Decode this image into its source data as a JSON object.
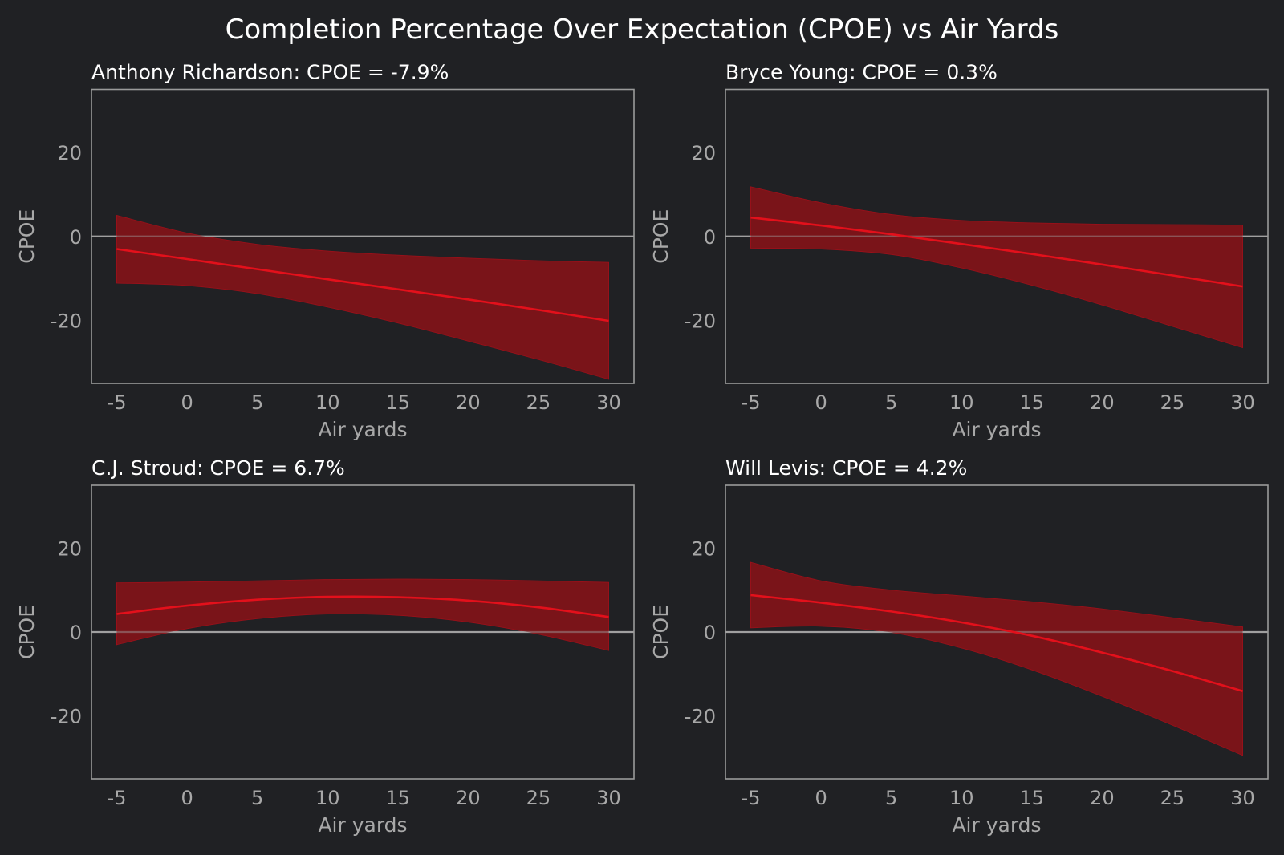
{
  "chart_data": {
    "title": "Completion Percentage Over Expectation (CPOE) vs Air Yards",
    "type": "line",
    "colors": {
      "background": "#202124",
      "band": "#7a1419",
      "line": "#e3101b",
      "zero_line": "#a0a0a0",
      "frame": "#9a9a9a",
      "tick_text": "#a8a8a8",
      "title_text": "#ffffff"
    },
    "panels": [
      {
        "player": "Anthony Richardson",
        "title": "Anthony Richardson: CPOE = -7.9%",
        "xlabel": "Air yards",
        "ylabel": "CPOE",
        "xlim": [
          -6.8,
          31.8
        ],
        "ylim": [
          -35,
          35
        ],
        "xticks": [
          -5,
          0,
          5,
          10,
          15,
          20,
          25,
          30
        ],
        "yticks": [
          -20,
          0,
          20
        ],
        "reference_line": 0,
        "x": [
          -5,
          0,
          5,
          10,
          15,
          20,
          25,
          30
        ],
        "mean": [
          -3.0,
          -5.4,
          -7.8,
          -10.2,
          -12.6,
          -15.0,
          -17.5,
          -20.1
        ],
        "upper": [
          5.0,
          0.8,
          -1.9,
          -3.5,
          -4.5,
          -5.2,
          -5.8,
          -6.2
        ],
        "lower": [
          -11.1,
          -11.7,
          -13.6,
          -16.8,
          -20.6,
          -24.9,
          -29.3,
          -34.0
        ]
      },
      {
        "player": "Bryce Young",
        "title": "Bryce Young: CPOE = 0.3%",
        "xlabel": "Air yards",
        "ylabel": "CPOE",
        "xlim": [
          -6.8,
          31.8
        ],
        "ylim": [
          -35,
          35
        ],
        "xticks": [
          -5,
          0,
          5,
          10,
          15,
          20,
          25,
          30
        ],
        "yticks": [
          -20,
          0,
          20
        ],
        "reference_line": 0,
        "x": [
          -5,
          0,
          5,
          10,
          15,
          20,
          25,
          30
        ],
        "mean": [
          4.5,
          2.6,
          0.5,
          -1.8,
          -4.2,
          -6.7,
          -9.3,
          -11.9
        ],
        "upper": [
          11.8,
          8.0,
          5.2,
          3.8,
          3.2,
          2.9,
          2.8,
          2.7
        ],
        "lower": [
          -2.8,
          -3.0,
          -4.3,
          -7.5,
          -11.6,
          -16.3,
          -21.4,
          -26.5
        ]
      },
      {
        "player": "C.J. Stroud",
        "title": "C.J. Stroud: CPOE = 6.7%",
        "xlabel": "Air yards",
        "ylabel": "CPOE",
        "xlim": [
          -6.8,
          31.8
        ],
        "ylim": [
          -35,
          35
        ],
        "xticks": [
          -5,
          0,
          5,
          10,
          15,
          20,
          25,
          30
        ],
        "yticks": [
          -20,
          0,
          20
        ],
        "reference_line": 0,
        "x": [
          -5,
          0,
          5,
          10,
          15,
          20,
          25,
          30
        ],
        "mean": [
          4.3,
          6.3,
          7.7,
          8.4,
          8.3,
          7.5,
          5.9,
          3.6
        ],
        "upper": [
          11.7,
          11.9,
          12.2,
          12.5,
          12.6,
          12.5,
          12.2,
          11.8
        ],
        "lower": [
          -3.0,
          0.8,
          3.2,
          4.3,
          4.0,
          2.4,
          -0.5,
          -4.4
        ]
      },
      {
        "player": "Will Levis",
        "title": "Will Levis: CPOE = 4.2%",
        "xlabel": "Air yards",
        "ylabel": "CPOE",
        "xlim": [
          -6.8,
          31.8
        ],
        "ylim": [
          -35,
          35
        ],
        "xticks": [
          -5,
          0,
          5,
          10,
          15,
          20,
          25,
          30
        ],
        "yticks": [
          -20,
          0,
          20
        ],
        "reference_line": 0,
        "x": [
          -5,
          0,
          5,
          10,
          15,
          20,
          25,
          30
        ],
        "mean": [
          8.8,
          7.0,
          4.9,
          2.3,
          -0.9,
          -4.9,
          -9.3,
          -14.1
        ],
        "upper": [
          16.6,
          12.2,
          10.0,
          8.6,
          7.2,
          5.5,
          3.4,
          1.2
        ],
        "lower": [
          1.0,
          1.4,
          -0.1,
          -3.8,
          -9.0,
          -15.3,
          -22.2,
          -29.4
        ]
      }
    ]
  }
}
